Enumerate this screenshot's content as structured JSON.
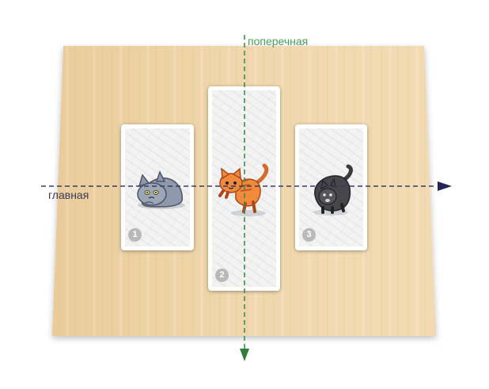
{
  "axes": {
    "main_label": "главная",
    "cross_label": "поперечная",
    "main_color": "#3a3a66",
    "cross_color": "#3c8f49"
  },
  "cards": [
    {
      "number": "1",
      "cat": "grey-cat-lying-icon"
    },
    {
      "number": "2",
      "cat": "orange-cat-jumping-icon"
    },
    {
      "number": "3",
      "cat": "black-cat-bending-icon"
    }
  ],
  "colors": {
    "board": "#efd5a9",
    "card_background": "#f3f3f3",
    "badge": "#b9b9b9"
  }
}
